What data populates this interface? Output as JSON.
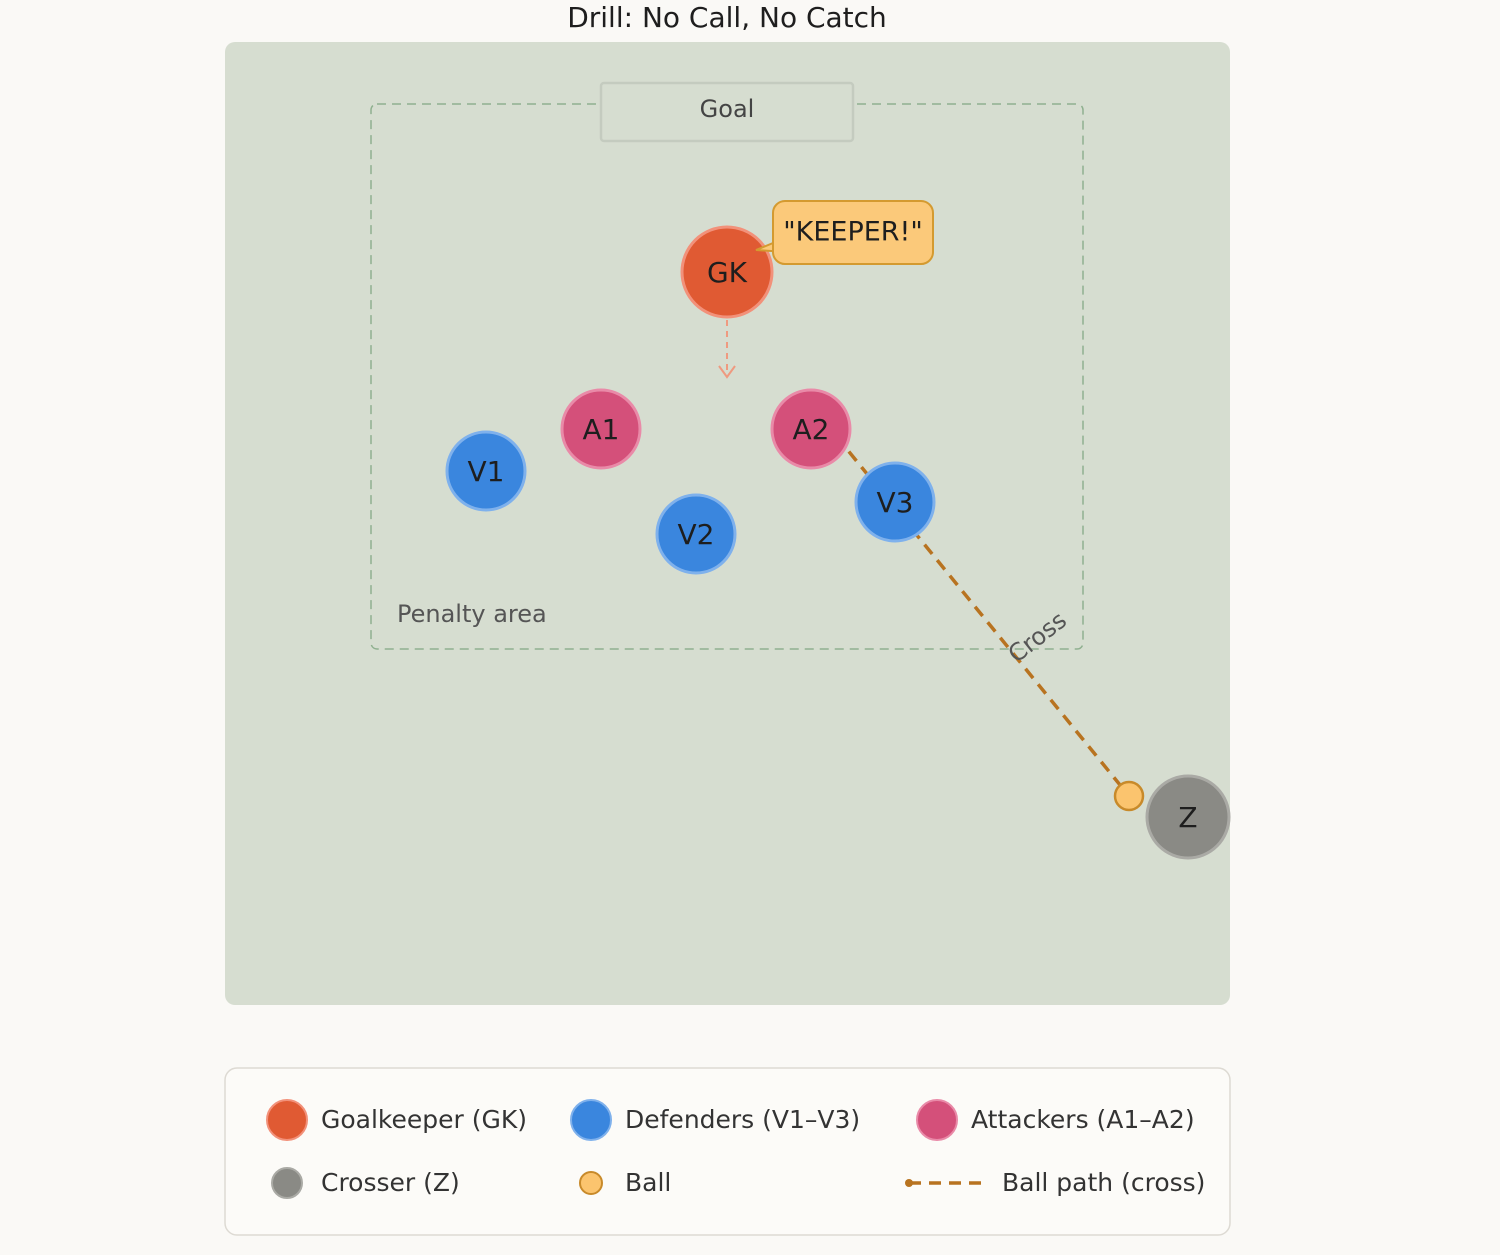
{
  "title": "Drill: No Call, No Catch",
  "field": {
    "goal_label": "Goal",
    "penalty_area_label": "Penalty area",
    "cross_label": "Cross",
    "callout": "\"KEEPER!\""
  },
  "players": [
    {
      "label": "GK"
    },
    {
      "label": "A1"
    },
    {
      "label": "A2"
    },
    {
      "label": "V1"
    },
    {
      "label": "V2"
    },
    {
      "label": "V3"
    },
    {
      "label": "Z"
    }
  ],
  "legend": {
    "items": [
      {
        "label": "Goalkeeper (GK)"
      },
      {
        "label": "Defenders (V1–V3)"
      },
      {
        "label": "Attackers (A1–A2)"
      },
      {
        "label": "Crosser (Z)"
      },
      {
        "label": "Ball"
      },
      {
        "label": "Ball path (cross)"
      }
    ]
  }
}
